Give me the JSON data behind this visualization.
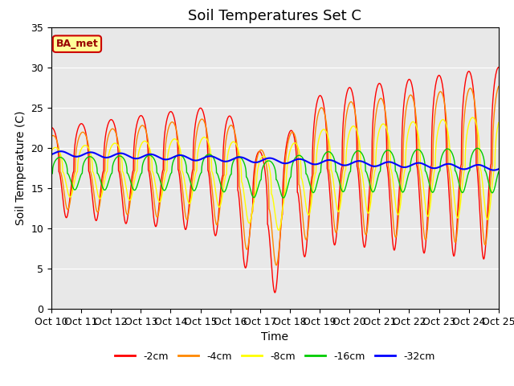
{
  "title": "Soil Temperatures Set C",
  "xlabel": "Time",
  "ylabel": "Soil Temperature (C)",
  "annotation": "BA_met",
  "ylim": [
    0,
    35
  ],
  "xlim": [
    0,
    360
  ],
  "xtick_labels": [
    "Oct 10",
    "Oct 11",
    "Oct 12",
    "Oct 13",
    "Oct 14",
    "Oct 15",
    "Oct 16",
    "Oct 17",
    "Oct 18",
    "Oct 19",
    "Oct 20",
    "Oct 21",
    "Oct 22",
    "Oct 23",
    "Oct 24",
    "Oct 25"
  ],
  "xtick_positions": [
    0,
    24,
    48,
    72,
    96,
    120,
    144,
    168,
    192,
    216,
    240,
    264,
    288,
    312,
    336,
    360
  ],
  "ytick_positions": [
    0,
    5,
    10,
    15,
    20,
    25,
    30,
    35
  ],
  "line_colors": {
    "-2cm": "#ff0000",
    "-4cm": "#ff8800",
    "-8cm": "#ffff00",
    "-16cm": "#00cc00",
    "-32cm": "#0000ff"
  },
  "background_color": "#e8e8e8",
  "annotation_bg": "#ffff99",
  "annotation_border": "#cc0000",
  "grid_color": "#ffffff",
  "title_fontsize": 13,
  "label_fontsize": 10,
  "tick_fontsize": 9
}
